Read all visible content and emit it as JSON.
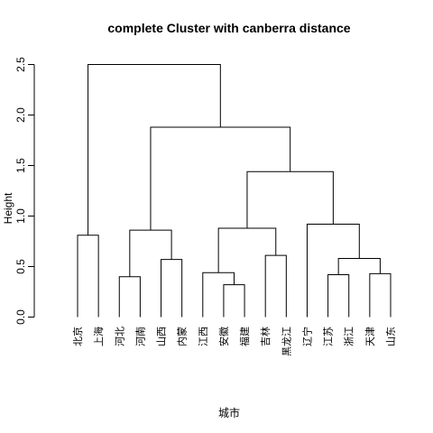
{
  "chart_data": {
    "type": "dendrogram",
    "title": "complete Cluster with canberra distance",
    "xlabel": "城市",
    "ylabel": "Height",
    "ylim": [
      0,
      2.5
    ],
    "y_ticks": [
      0.0,
      0.5,
      1.0,
      1.5,
      2.0,
      2.5
    ],
    "y_tick_labels": [
      "0.0",
      "0.5",
      "1.0",
      "1.5",
      "2.0",
      "2.5"
    ],
    "leaves": [
      "北京",
      "上海",
      "河北",
      "河南",
      "山西",
      "内蒙",
      "江西",
      "安徽",
      "福建",
      "吉林",
      "黑龙江",
      "辽宁",
      "江苏",
      "浙江",
      "天津",
      "山东"
    ],
    "merges": [
      {
        "id": "m1",
        "left": "L:安徽",
        "right": "L:福建",
        "height": 0.32
      },
      {
        "id": "m2",
        "left": "L:河北",
        "right": "L:河南",
        "height": 0.4
      },
      {
        "id": "m3",
        "left": "L:江苏",
        "right": "L:浙江",
        "height": 0.42
      },
      {
        "id": "m4",
        "left": "L:天津",
        "right": "L:山东",
        "height": 0.43
      },
      {
        "id": "m5",
        "left": "L:江西",
        "right": "m1",
        "height": 0.44
      },
      {
        "id": "m6",
        "left": "L:山西",
        "right": "L:内蒙",
        "height": 0.57
      },
      {
        "id": "m7",
        "left": "m3",
        "right": "m4",
        "height": 0.58
      },
      {
        "id": "m8",
        "left": "L:吉林",
        "right": "L:黑龙江",
        "height": 0.61
      },
      {
        "id": "m9",
        "left": "L:北京",
        "right": "L:上海",
        "height": 0.81
      },
      {
        "id": "m10",
        "left": "m2",
        "right": "m6",
        "height": 0.86
      },
      {
        "id": "m11",
        "left": "m5",
        "right": "m8",
        "height": 0.88
      },
      {
        "id": "m12",
        "left": "L:辽宁",
        "right": "m7",
        "height": 0.92
      },
      {
        "id": "m13",
        "left": "m11",
        "right": "m12",
        "height": 1.44
      },
      {
        "id": "m14",
        "left": "m10",
        "right": "m13",
        "height": 1.88
      },
      {
        "id": "m15",
        "left": "m9",
        "right": "m14",
        "height": 2.5
      }
    ]
  }
}
